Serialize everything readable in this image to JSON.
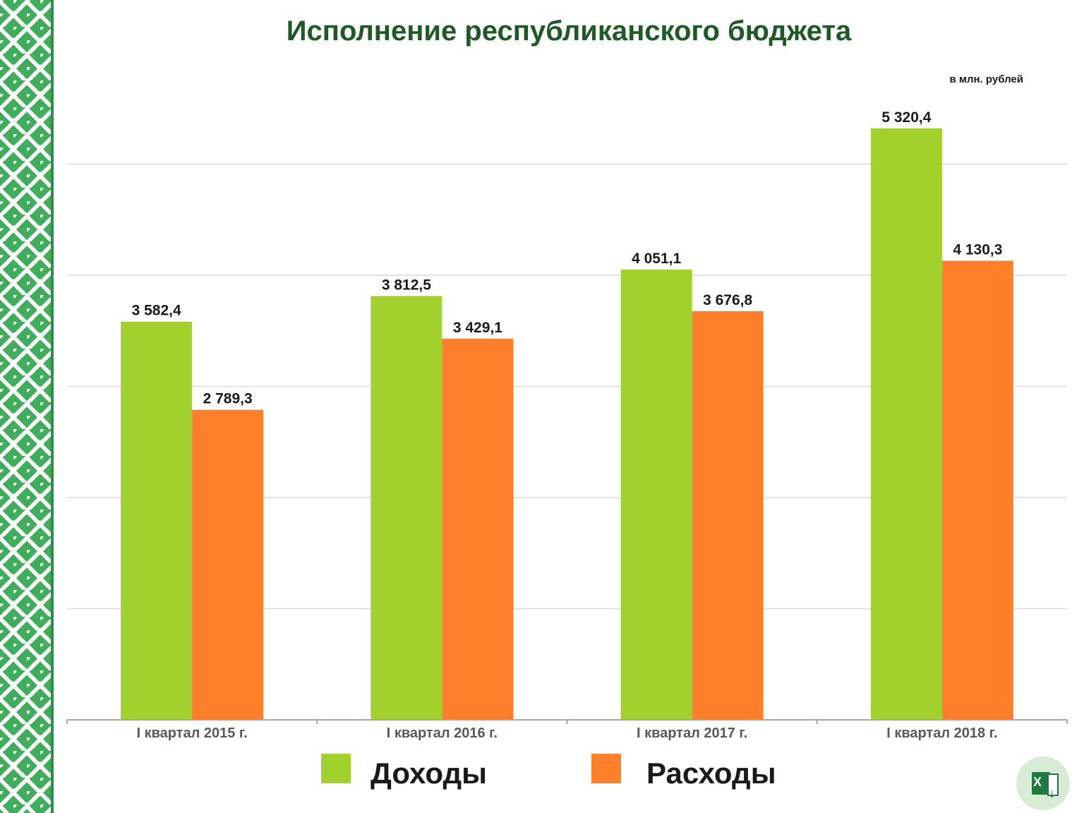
{
  "chart_data": {
    "type": "bar",
    "title": "Исполнение республиканского бюджета",
    "unit": "в млн. рублей",
    "categories": [
      "I квартал 2015 г.",
      "I квартал 2016 г.",
      "I квартал 2017 г.",
      "I квартал 2018 г."
    ],
    "series": [
      {
        "name": "Доходы",
        "color": "#a2d12d",
        "values": [
          3582.4,
          3812.5,
          4051.1,
          5320.4
        ],
        "labels": [
          "3 582,4",
          "3 812,5",
          "4 051,1",
          "5 320,4"
        ]
      },
      {
        "name": "Расходы",
        "color": "#fe7f2a",
        "values": [
          2789.3,
          3429.1,
          3676.8,
          4130.3
        ],
        "labels": [
          "2 789,3",
          "3 429,1",
          "3 676,8",
          "4 130,3"
        ]
      }
    ],
    "ylim": [
      0,
      5700
    ],
    "grid": true,
    "legend_position": "bottom"
  },
  "colors": {
    "title": "#1e5a24",
    "ornament": "#3fae5a",
    "gridline": "#d9d9d9",
    "axis": "#a6a6a6",
    "category_label": "#595959"
  },
  "icons": {
    "excel_badge": "excel-download-icon",
    "excel_letter": "X"
  }
}
